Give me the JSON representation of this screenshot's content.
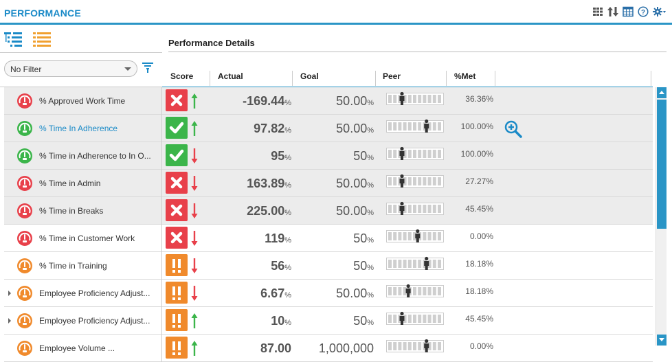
{
  "app": {
    "title": "PERFORMANCE"
  },
  "header_icons": [
    "grid-view-icon",
    "sort-icon",
    "table-icon",
    "help-icon",
    "settings-icon"
  ],
  "view_toggle": [
    "tree-view-icon",
    "list-view-icon"
  ],
  "filter": {
    "value": "No Filter",
    "icon": "filter-icon"
  },
  "details": {
    "title": "Performance Details"
  },
  "columns": {
    "score": "Score",
    "actual": "Actual",
    "goal": "Goal",
    "peer": "Peer",
    "met": "%Met"
  },
  "colors": {
    "accent": "#2a95c6",
    "red": "#e8404a",
    "green": "#3bb54a",
    "orange": "#f08a2c",
    "trend_up": "#3bb54a",
    "trend_down": "#e8404a"
  },
  "rows": [
    {
      "name": "% Approved Work Time",
      "gauge": "red",
      "status": "fail",
      "trend": "up",
      "actual_num": "-169.44",
      "actual_unit": "%",
      "goal_num": "50.00",
      "goal_unit": "%",
      "peer_pos": 0.25,
      "met": "36.36%",
      "shaded": true,
      "link": false,
      "expandable": false,
      "zoom": false
    },
    {
      "name": "% Time In Adherence",
      "gauge": "green",
      "status": "pass",
      "trend": "up",
      "actual_num": "97.82",
      "actual_unit": "%",
      "goal_num": "50.00",
      "goal_unit": "%",
      "peer_pos": 0.72,
      "met": "100.00%",
      "shaded": true,
      "link": true,
      "expandable": false,
      "zoom": true
    },
    {
      "name": "% Time in Adherence to In O...",
      "gauge": "green",
      "status": "pass",
      "trend": "down",
      "actual_num": "95",
      "actual_unit": "%",
      "goal_num": "50",
      "goal_unit": "%",
      "peer_pos": 0.25,
      "met": "100.00%",
      "shaded": true,
      "link": false,
      "expandable": false,
      "zoom": false
    },
    {
      "name": "% Time in Admin",
      "gauge": "red",
      "status": "fail",
      "trend": "down",
      "actual_num": "163.89",
      "actual_unit": "%",
      "goal_num": "50.00",
      "goal_unit": "%",
      "peer_pos": 0.25,
      "met": "27.27%",
      "shaded": true,
      "link": false,
      "expandable": false,
      "zoom": false
    },
    {
      "name": "% Time in Breaks",
      "gauge": "red",
      "status": "fail",
      "trend": "down",
      "actual_num": "225.00",
      "actual_unit": "%",
      "goal_num": "50.00",
      "goal_unit": "%",
      "peer_pos": 0.25,
      "met": "45.45%",
      "shaded": true,
      "link": false,
      "expandable": false,
      "zoom": false
    },
    {
      "name": "% Time in Customer Work",
      "gauge": "red",
      "status": "fail",
      "trend": "down",
      "actual_num": "119",
      "actual_unit": "%",
      "goal_num": "50",
      "goal_unit": "%",
      "peer_pos": 0.55,
      "met": "0.00%",
      "shaded": false,
      "link": false,
      "expandable": false,
      "zoom": false
    },
    {
      "name": "% Time in Training",
      "gauge": "orange",
      "status": "warn",
      "trend": "down",
      "actual_num": "56",
      "actual_unit": "%",
      "goal_num": "50",
      "goal_unit": "%",
      "peer_pos": 0.72,
      "met": "18.18%",
      "shaded": false,
      "link": false,
      "expandable": false,
      "zoom": false
    },
    {
      "name": "Employee Proficiency Adjust...",
      "gauge": "orange",
      "status": "warn",
      "trend": "down",
      "actual_num": "6.67",
      "actual_unit": "%",
      "goal_num": "50.00",
      "goal_unit": "%",
      "peer_pos": 0.37,
      "met": "18.18%",
      "shaded": false,
      "link": false,
      "expandable": true,
      "zoom": false
    },
    {
      "name": "Employee Proficiency Adjust...",
      "gauge": "orange",
      "status": "warn",
      "trend": "up",
      "actual_num": "10",
      "actual_unit": "%",
      "goal_num": "50",
      "goal_unit": "%",
      "peer_pos": 0.25,
      "met": "45.45%",
      "shaded": false,
      "link": false,
      "expandable": true,
      "zoom": false
    },
    {
      "name": "Employee Volume ...",
      "gauge": "orange",
      "status": "warn",
      "trend": "up",
      "actual_num": "87.00",
      "actual_unit": "",
      "goal_num": "1,000,000",
      "goal_unit": "",
      "peer_pos": 0.72,
      "met": "0.00%",
      "shaded": false,
      "link": false,
      "expandable": false,
      "zoom": false
    }
  ]
}
